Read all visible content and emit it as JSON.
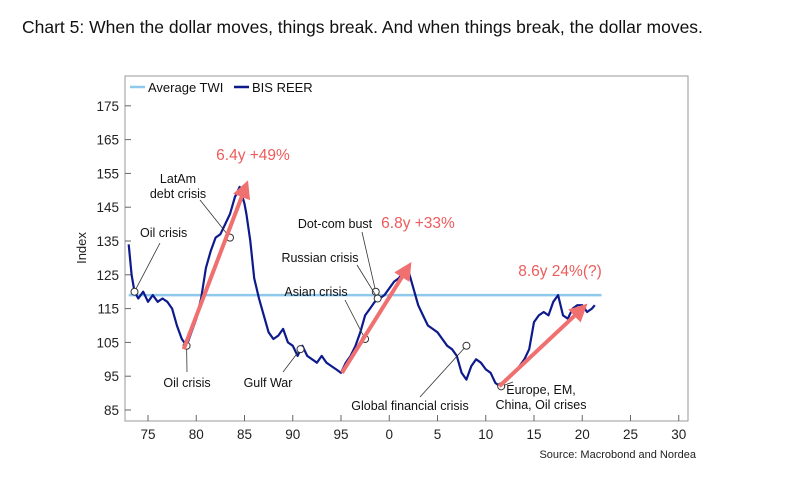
{
  "title": "Chart 5: When the dollar moves, things break. And when things break, the dollar moves.",
  "source": "Source: Macrobond and Nordea",
  "chart_data": {
    "type": "line",
    "title": "Chart 5: When the dollar moves, things break. And when things break, the dollar moves.",
    "ylabel": "Index",
    "xlabel": "",
    "xlim": [
      1973,
      2031
    ],
    "ylim": [
      85,
      178
    ],
    "x_ticks": [
      75,
      80,
      85,
      90,
      95,
      0,
      5,
      10,
      15,
      20,
      25,
      30
    ],
    "y_ticks": [
      85,
      95,
      105,
      115,
      125,
      135,
      145,
      155,
      165,
      175
    ],
    "grid": false,
    "legend": "top-left",
    "colors": {
      "twi": "#8ec8ec",
      "reer": "#0d1a8c",
      "arrow": "#f07070",
      "arrow_text": "#ee5b5b"
    },
    "average_twi": {
      "name": "Average TWI",
      "y": 119,
      "x": [
        1973,
        2022
      ]
    },
    "series": [
      {
        "name": "BIS REER",
        "x": [
          1973.0,
          1973.3,
          1973.6,
          1974.0,
          1974.5,
          1975.0,
          1975.5,
          1976.0,
          1976.5,
          1977.0,
          1977.5,
          1978.0,
          1978.5,
          1979.0,
          1979.5,
          1980.0,
          1980.5,
          1981.0,
          1981.5,
          1982.0,
          1982.5,
          1983.0,
          1983.5,
          1984.0,
          1984.5,
          1985.0,
          1985.2,
          1985.6,
          1986.0,
          1986.5,
          1987.0,
          1987.5,
          1988.0,
          1988.5,
          1989.0,
          1989.5,
          1990.0,
          1990.5,
          1991.0,
          1991.5,
          1992.0,
          1992.5,
          1993.0,
          1993.5,
          1994.0,
          1994.5,
          1995.0,
          1995.5,
          1996.0,
          1996.5,
          1997.0,
          1997.5,
          1998.0,
          1998.5,
          1999.0,
          1999.5,
          2000.0,
          2000.5,
          2001.0,
          2001.5,
          2002.0,
          2002.5,
          2003.0,
          2003.5,
          2004.0,
          2004.5,
          2005.0,
          2005.5,
          2006.0,
          2006.5,
          2007.0,
          2007.5,
          2008.0,
          2008.5,
          2009.0,
          2009.5,
          2010.0,
          2010.5,
          2011.0,
          2011.5,
          2012.0,
          2012.5,
          2013.0,
          2013.5,
          2014.0,
          2014.5,
          2015.0,
          2015.5,
          2016.0,
          2016.5,
          2017.0,
          2017.5,
          2018.0,
          2018.5,
          2019.0,
          2019.5,
          2020.0,
          2020.5,
          2021.0,
          2021.3
        ],
        "values": [
          134,
          125,
          120,
          118,
          120,
          117,
          119,
          117,
          118,
          117,
          115,
          110,
          106,
          104,
          108,
          112,
          118,
          127,
          132,
          136,
          137,
          140,
          143,
          148,
          151,
          146,
          143,
          135,
          124,
          118,
          113,
          108,
          106,
          107,
          109,
          105,
          104,
          101,
          104,
          101,
          100,
          99,
          101,
          99,
          98,
          97,
          96,
          99,
          101,
          104,
          108,
          113,
          115,
          117,
          118,
          119,
          121,
          123,
          124,
          126,
          126,
          121,
          116,
          113,
          110,
          109,
          108,
          106,
          104,
          103,
          101,
          96,
          94,
          98,
          100,
          99,
          97,
          96,
          93,
          92,
          94,
          95,
          96,
          98,
          100,
          103,
          111,
          113,
          114,
          113,
          117,
          119,
          113,
          112,
          115,
          116,
          116,
          114,
          115,
          116
        ]
      }
    ],
    "arrows": [
      {
        "label": "6.4y +49%",
        "from": [
          1978.7,
          103
        ],
        "to": [
          1985.1,
          151
        ]
      },
      {
        "label": "6.8y +33%",
        "from": [
          1995.1,
          96
        ],
        "to": [
          2001.9,
          127
        ]
      },
      {
        "label": "8.6y 24%(?)",
        "from": [
          2011.4,
          92
        ],
        "to": [
          2020.0,
          115
        ]
      }
    ],
    "annotations": [
      {
        "text": "Oil crisis",
        "at": [
          1973.6,
          120
        ]
      },
      {
        "text": "LatAm debt crisis",
        "at": [
          1983.5,
          136
        ]
      },
      {
        "text": "Oil crisis",
        "at": [
          1979.0,
          104
        ]
      },
      {
        "text": "Gulf War",
        "at": [
          1990.8,
          103
        ]
      },
      {
        "text": "Dot-com bust",
        "at": [
          1998.6,
          120
        ]
      },
      {
        "text": "Russian crisis",
        "at": [
          1998.8,
          118
        ]
      },
      {
        "text": "Asian crisis",
        "at": [
          1997.5,
          106
        ]
      },
      {
        "text": "Global financial crisis",
        "at": [
          2008.0,
          104
        ]
      },
      {
        "text": "Europe, EM, China, Oil crises",
        "at": [
          2011.6,
          92
        ]
      }
    ]
  }
}
